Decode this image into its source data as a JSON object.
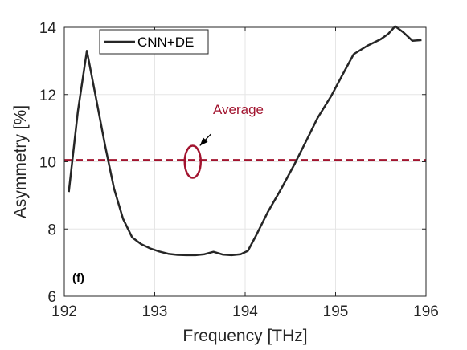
{
  "chart_data": {
    "type": "line",
    "xlabel": "Frequency [THz]",
    "ylabel": "Asymmetry [%]",
    "xlim": [
      192,
      196
    ],
    "ylim": [
      6,
      14
    ],
    "xticks": [
      "192",
      "193",
      "194",
      "195",
      "196"
    ],
    "yticks": [
      "6",
      "8",
      "10",
      "12",
      "14"
    ],
    "grid": true,
    "legend_position": "top-left",
    "panel_label": "(f)",
    "series": [
      {
        "name": "CNN+DE",
        "color": "#262626",
        "x": [
          192.05,
          192.15,
          192.25,
          192.35,
          192.45,
          192.55,
          192.65,
          192.75,
          192.85,
          192.95,
          193.05,
          193.15,
          193.25,
          193.35,
          193.45,
          193.55,
          193.65,
          193.75,
          193.85,
          193.95,
          194.03,
          194.12,
          194.25,
          194.4,
          194.55,
          194.7,
          194.8,
          194.95,
          195.1,
          195.2,
          195.35,
          195.5,
          195.58,
          195.66,
          195.75,
          195.85,
          195.95
        ],
        "y": [
          9.1,
          11.5,
          13.3,
          11.9,
          10.5,
          9.2,
          8.3,
          7.75,
          7.55,
          7.42,
          7.33,
          7.26,
          7.23,
          7.22,
          7.22,
          7.25,
          7.32,
          7.24,
          7.22,
          7.25,
          7.35,
          7.8,
          8.5,
          9.2,
          9.95,
          10.75,
          11.3,
          11.95,
          12.7,
          13.2,
          13.45,
          13.65,
          13.8,
          14.03,
          13.85,
          13.6,
          13.62
        ]
      },
      {
        "name": "Average",
        "color": "#a2142f",
        "style": "dashed",
        "x": [
          192,
          196
        ],
        "y": [
          10.05,
          10.05
        ]
      }
    ],
    "annotation": {
      "text": "Average",
      "color": "#a2142f",
      "ellipse_center": [
        193.42,
        10.0
      ],
      "arrow_from": [
        193.62,
        10.82
      ],
      "arrow_to": [
        193.5,
        10.48
      ]
    }
  }
}
